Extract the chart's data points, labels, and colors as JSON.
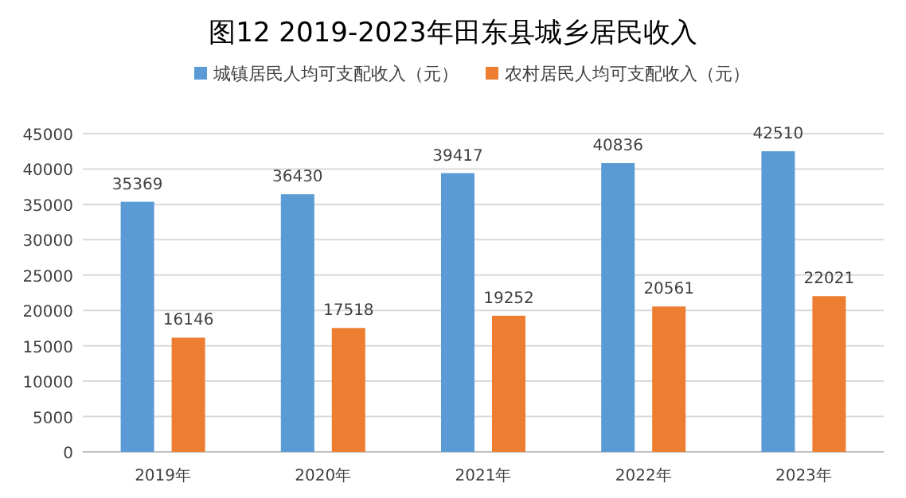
{
  "chart_data": {
    "type": "bar",
    "title": "图12  2019-2023年田东县城乡居民收入",
    "categories": [
      "2019年",
      "2020年",
      "2021年",
      "2022年",
      "2023年"
    ],
    "series": [
      {
        "name": "城镇居民人均可支配收入（元）",
        "color": "#5b9bd5",
        "values": [
          35369,
          36430,
          39417,
          40836,
          42510
        ]
      },
      {
        "name": "农村居民人均可支配收入（元）",
        "color": "#ed7d31",
        "values": [
          16146,
          17518,
          19252,
          20561,
          22021
        ]
      }
    ],
    "ylim": [
      0,
      45000
    ],
    "yticks": [
      0,
      5000,
      10000,
      15000,
      20000,
      25000,
      30000,
      35000,
      40000,
      45000
    ],
    "grid": "y",
    "legend": "top",
    "data_labels": true
  }
}
